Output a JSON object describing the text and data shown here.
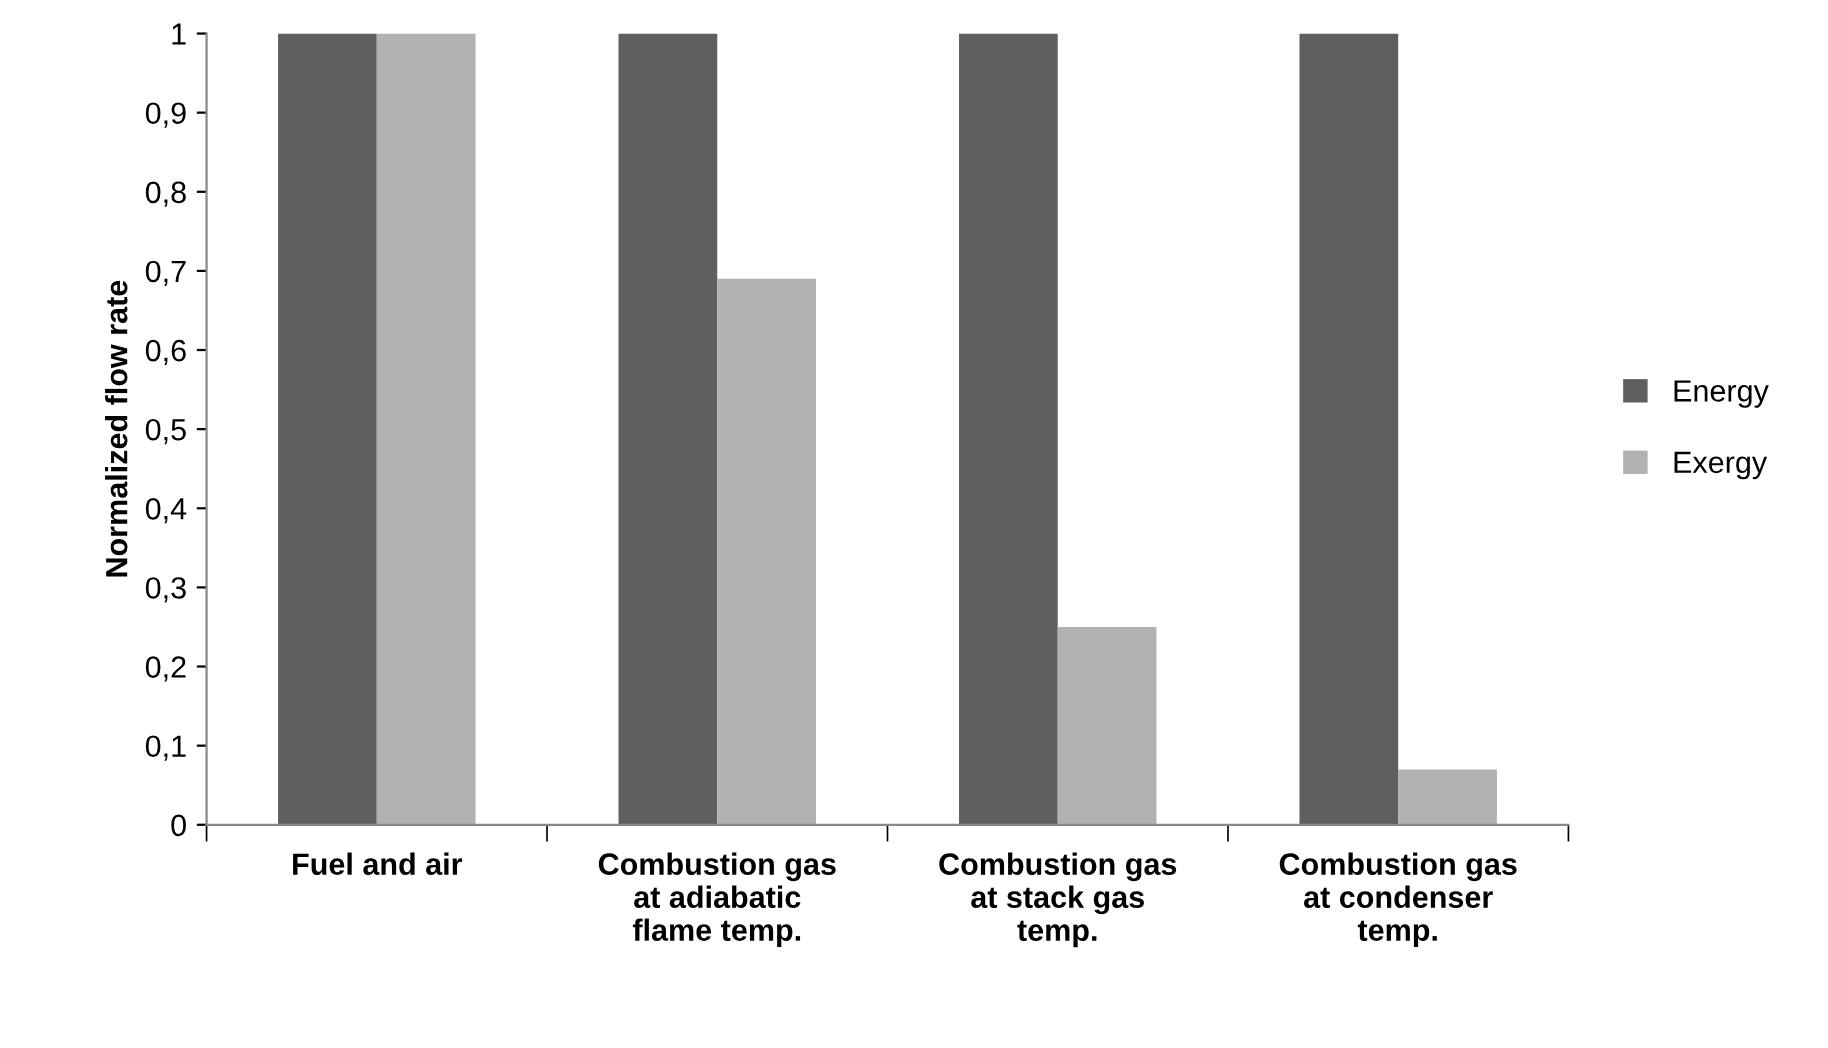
{
  "chart_data": {
    "type": "bar",
    "ylabel": "Normalized flow rate",
    "categories": [
      "Fuel and air",
      "Combustion gas\nat adiabatic\nflame temp.",
      "Combustion gas\nat stack gas\ntemp.",
      "Combustion gas\nat condenser\ntemp."
    ],
    "series": [
      {
        "name": "Energy",
        "color": "#5f5f5f",
        "values": [
          1,
          1,
          1,
          1
        ]
      },
      {
        "name": "Exergy",
        "color": "#b2b2b2",
        "values": [
          1,
          0.69,
          0.25,
          0.07
        ]
      }
    ],
    "ylim": [
      0,
      1
    ],
    "yticks": [
      0,
      {
        "value": 0.1,
        "label": "0,1"
      },
      {
        "value": 0.2,
        "label": "0,2"
      },
      {
        "value": 0.3,
        "label": "0,3"
      },
      {
        "value": 0.4,
        "label": "0,4"
      },
      {
        "value": 0.5,
        "label": "0,5"
      },
      {
        "value": 0.6,
        "label": "0,6"
      },
      {
        "value": 0.7,
        "label": "0,7"
      },
      {
        "value": 0.8,
        "label": "0,8"
      },
      {
        "value": 0.9,
        "label": "0,9"
      },
      1
    ],
    "grid": false,
    "legend": "right"
  }
}
